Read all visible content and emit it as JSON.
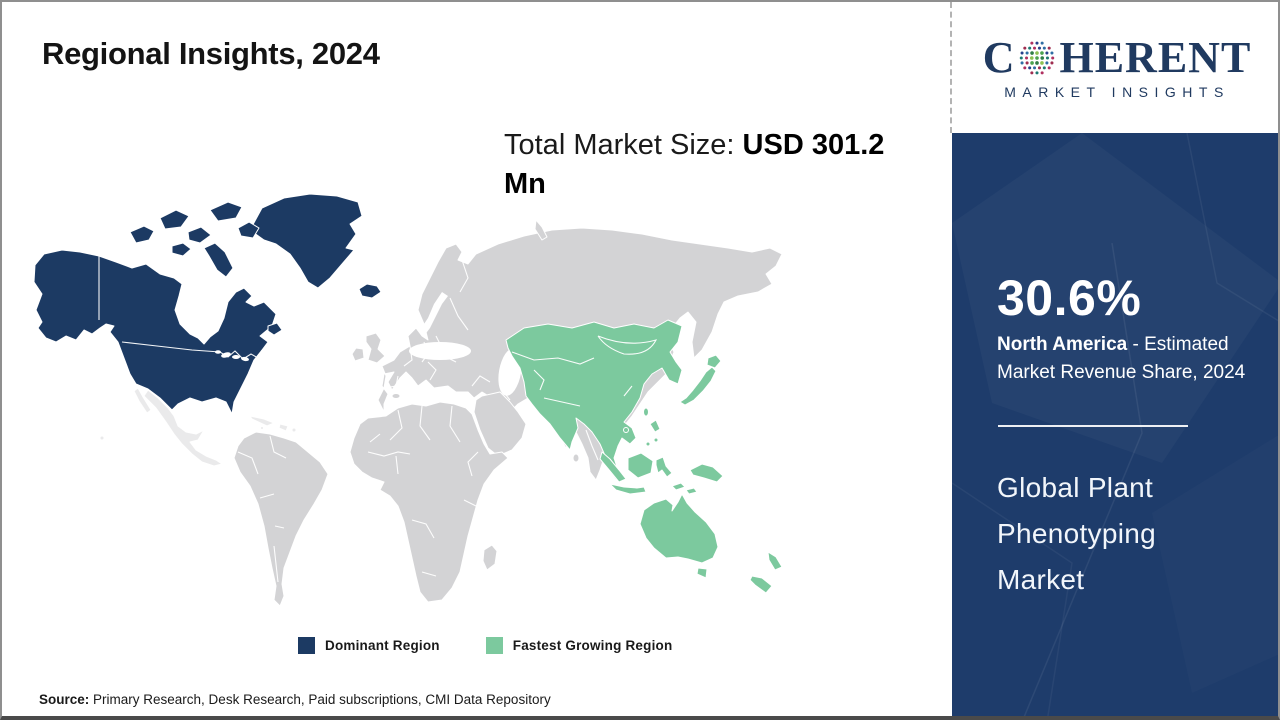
{
  "page": {
    "title": "Regional Insights, 2024"
  },
  "logo": {
    "prefix": "C",
    "suffix": "HERENT",
    "tagline": "MARKET INSIGHTS",
    "globe_green_dots": [
      "#4ba24f",
      "#2f7d46",
      "#8cc152"
    ],
    "globe_outer_dots": [
      "#b03060",
      "#27408b",
      "#2e6da4",
      "#9f2d50",
      "#1d7a73"
    ]
  },
  "market_size": {
    "label": "Total Market Size:",
    "value": "USD 301.2 Mn"
  },
  "legend": {
    "items": [
      {
        "label": "Dominant Region",
        "color": "#1c3a63"
      },
      {
        "label": "Fastest Growing Region",
        "color": "#7cc99e"
      }
    ]
  },
  "sidebar": {
    "share_value": "30.6%",
    "share_region": "North America",
    "share_text": "- Estimated Market Revenue Share, 2024",
    "market_name": "Global Plant Phenotyping Market"
  },
  "source": {
    "label": "Source:",
    "text": "Primary Research, Desk Research, Paid subscriptions, CMI Data Repository"
  },
  "colors": {
    "dominant": "#1c3a63",
    "fastest_growing": "#7cc99e",
    "map_other": "#d3d3d5",
    "map_other_light": "#eaeaeb",
    "sidebar_bg": "#1e3c6b",
    "logo_navy": "#203a60"
  },
  "chart_data": {
    "type": "heatmap",
    "subtype": "choropleth-world-map",
    "title": "Regional Insights, 2024",
    "total_market_size": "USD 301.2 Mn",
    "market": "Global Plant Phenotyping Market",
    "legend_position": "bottom",
    "regions": [
      {
        "name": "North America",
        "category": "Dominant Region",
        "color": "#1c3a63",
        "estimated_market_revenue_share_2024_pct": 30.6
      },
      {
        "name": "Asia Pacific",
        "category": "Fastest Growing Region",
        "color": "#7cc99e"
      },
      {
        "name": "Rest of World",
        "category": "Other",
        "color": "#d3d3d5"
      }
    ]
  }
}
